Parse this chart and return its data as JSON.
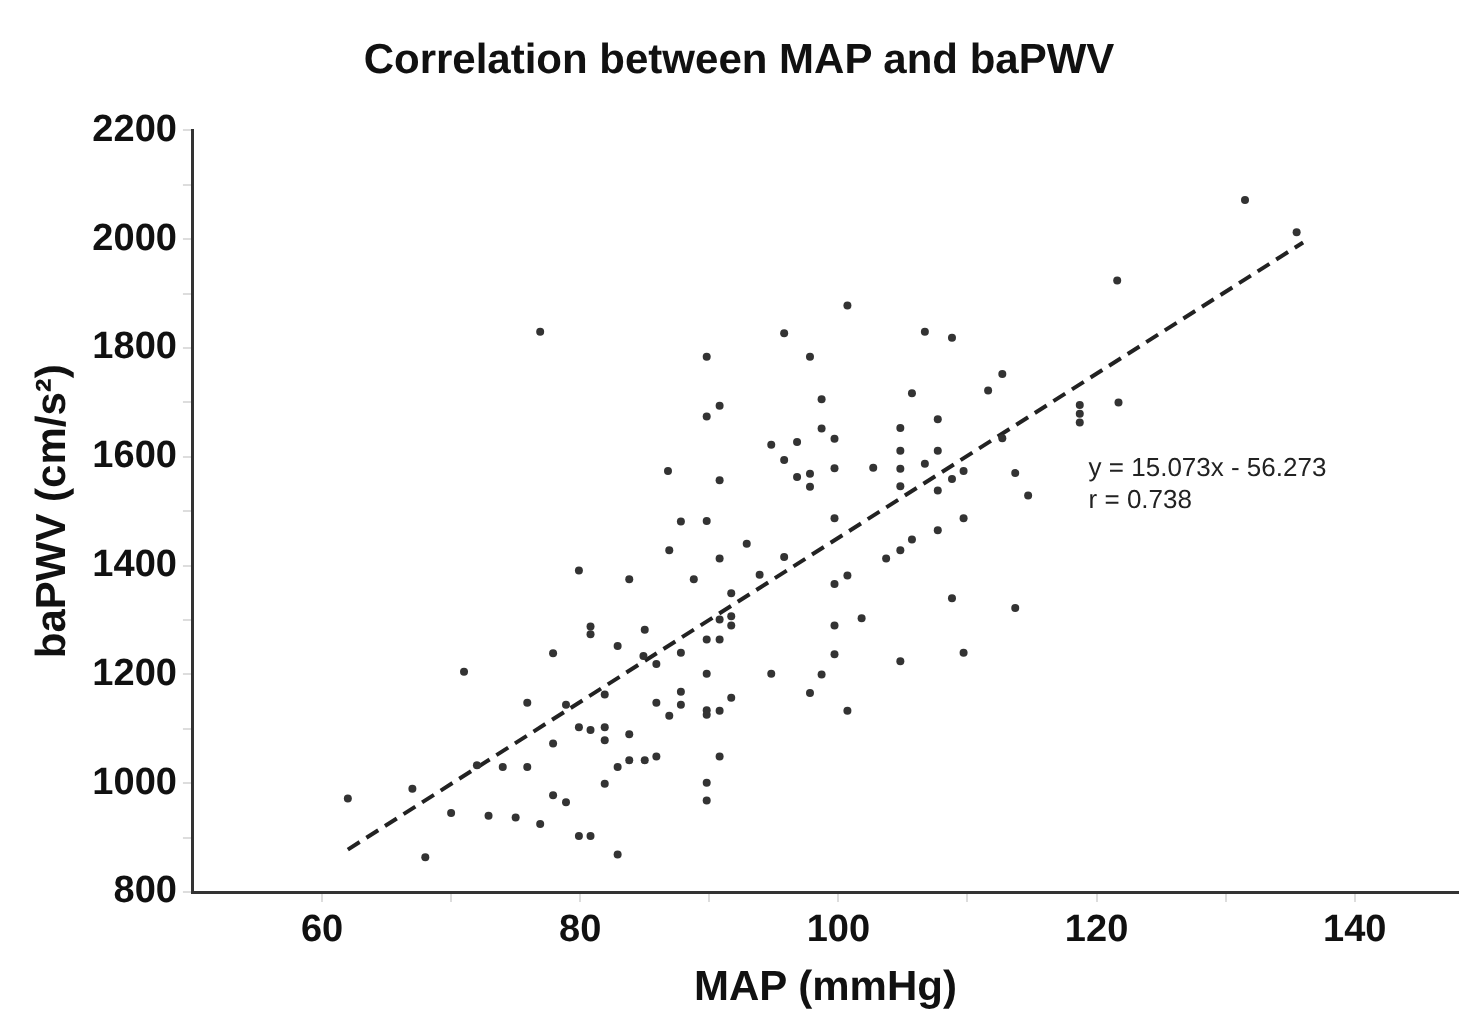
{
  "chart_data": {
    "type": "scatter",
    "title": "Correlation between MAP and baPWV",
    "xlabel": "MAP (mmHg)",
    "ylabel": "baPWV (cm/s²)",
    "xlim": [
      50,
      148
    ],
    "ylim": [
      800,
      2200
    ],
    "xticks": [
      60,
      {
        "value": 70,
        "label": null
      },
      80,
      {
        "value": 90,
        "label": null
      },
      100,
      {
        "value": 110,
        "label": null
      },
      120,
      {
        "value": 130,
        "label": null
      },
      140
    ],
    "yticks": [
      800,
      {
        "value": 900,
        "label": null
      },
      1000,
      {
        "value": 1100,
        "label": null
      },
      1200,
      {
        "value": 1300,
        "label": null
      },
      1400,
      {
        "value": 1500,
        "label": null
      },
      1600,
      {
        "value": 1700,
        "label": null
      },
      1800,
      {
        "value": 1900,
        "label": null
      },
      2000,
      {
        "value": 2100,
        "label": null
      },
      2200
    ],
    "grid": false,
    "legend": false,
    "marker": "circle",
    "annotations": [
      "y = 15.073x - 56.273",
      "r = 0.738"
    ],
    "series": [
      {
        "color": "#333333",
        "x": [
          76.9,
          86.8,
          87.8,
          86.9,
          79.9,
          83.8,
          80.8,
          80.8,
          85.0,
          82.9,
          77.9,
          71.0,
          75.9,
          78.9,
          81.9,
          85.9,
          85.9,
          87.8,
          87.8,
          87.8,
          86.9,
          79.9,
          80.8,
          81.9,
          81.9,
          83.8,
          77.9,
          75.9,
          74.0,
          72.0,
          82.9,
          83.8,
          85.0,
          85.9,
          81.9,
          67.0,
          62.0,
          77.9,
          78.9,
          70.0,
          72.9,
          75.0,
          76.9,
          79.9,
          80.8,
          82.9,
          68.0,
          100.7,
          95.8,
          106.7,
          108.8,
          89.8,
          97.8,
          98.7,
          90.8,
          89.8,
          105.7,
          112.7,
          111.6,
          98.7,
          104.8,
          107.7,
          99.7,
          94.8,
          96.8,
          95.8,
          96.8,
          97.8,
          97.8,
          99.7,
          102.7,
          104.8,
          104.8,
          104.8,
          106.7,
          107.7,
          107.7,
          108.8,
          109.7,
          112.7,
          113.7,
          114.7,
          90.8,
          89.8,
          90.8,
          92.9,
          88.8,
          93.9,
          95.8,
          99.7,
          99.7,
          100.7,
          103.7,
          104.8,
          105.7,
          107.7,
          109.7,
          91.7,
          91.7,
          91.7,
          90.8,
          89.8,
          90.8,
          84.9,
          99.7,
          99.7,
          101.8,
          108.8,
          113.7,
          109.7,
          104.8,
          94.8,
          98.7,
          89.8,
          89.8,
          89.8,
          90.8,
          91.7,
          97.8,
          100.7,
          90.8,
          89.8,
          89.8,
          131.5,
          135.5,
          121.6,
          118.7,
          118.7,
          118.7,
          121.7
        ],
        "values": [
          1830,
          1574,
          1481,
          1428,
          1391,
          1375,
          1288,
          1274,
          1282,
          1252,
          1239,
          1205,
          1148,
          1144,
          1163,
          1219,
          1148,
          1240,
          1168,
          1144,
          1124,
          1103,
          1098,
          1103,
          1079,
          1090,
          1073,
          1030,
          1030,
          1033,
          1030,
          1042,
          1042,
          1049,
          999,
          990,
          972,
          978,
          965,
          945,
          940,
          937,
          925,
          903,
          903,
          869,
          864,
          1878,
          1827,
          1830,
          1819,
          1784,
          1784,
          1706,
          1694,
          1674,
          1717,
          1752,
          1722,
          1652,
          1653,
          1669,
          1633,
          1622,
          1627,
          1594,
          1563,
          1569,
          1545,
          1579,
          1580,
          1611,
          1578,
          1546,
          1587,
          1611,
          1538,
          1559,
          1574,
          1634,
          1570,
          1529,
          1557,
          1482,
          1413,
          1440,
          1375,
          1383,
          1416,
          1487,
          1366,
          1382,
          1413,
          1428,
          1448,
          1465,
          1487,
          1349,
          1307,
          1290,
          1301,
          1264,
          1264,
          1234,
          1290,
          1237,
          1303,
          1340,
          1322,
          1240,
          1224,
          1201,
          1200,
          1201,
          1134,
          1126,
          1133,
          1157,
          1166,
          1133,
          1049,
          1001,
          968,
          2072,
          2013,
          1924,
          1695,
          1679,
          1663,
          1700
        ]
      },
      {
        "type": "line",
        "color": "#222222",
        "line_style": "dashed",
        "marker": "none",
        "x": [
          62,
          136
        ],
        "values": [
          878,
          1994
        ]
      }
    ]
  }
}
